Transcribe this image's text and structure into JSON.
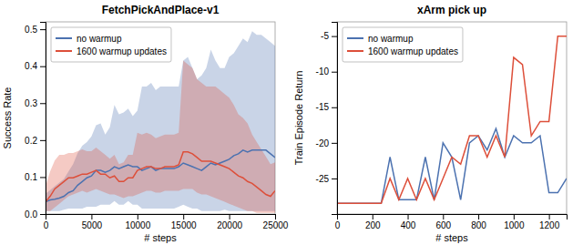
{
  "chart_data": [
    {
      "type": "line",
      "title": "FetchPickAndPlace-v1",
      "xlabel": "# steps",
      "ylabel": "Success Rate",
      "xlim": [
        0,
        25000
      ],
      "ylim": [
        0.0,
        0.52
      ],
      "xticks": [
        0,
        5000,
        10000,
        15000,
        20000,
        25000
      ],
      "yticks": [
        {
          "value": 0.0,
          "label": "0.0"
        },
        0.1,
        0.2,
        0.3,
        0.4,
        0.5
      ],
      "legend": "upper left",
      "x": [
        0,
        500,
        1000,
        1500,
        2000,
        2500,
        3000,
        3500,
        4000,
        4500,
        5000,
        5500,
        6000,
        6500,
        7000,
        7500,
        8000,
        8500,
        9000,
        9500,
        10000,
        10500,
        11000,
        11500,
        12000,
        12500,
        13000,
        13500,
        14000,
        14500,
        15000,
        15500,
        16000,
        16500,
        17000,
        17500,
        18000,
        18500,
        19000,
        19500,
        20000,
        20500,
        21000,
        21500,
        22000,
        22500,
        23000,
        23500,
        24000,
        24500,
        25000
      ],
      "series": [
        {
          "name": "no warmup",
          "color": "#4c72b0",
          "values": [
            0.033,
            0.038,
            0.04,
            0.043,
            0.048,
            0.058,
            0.063,
            0.078,
            0.088,
            0.098,
            0.103,
            0.118,
            0.118,
            0.113,
            0.118,
            0.128,
            0.123,
            0.128,
            0.133,
            0.128,
            0.128,
            0.118,
            0.123,
            0.128,
            0.118,
            0.123,
            0.123,
            0.123,
            0.123,
            0.128,
            0.138,
            0.133,
            0.128,
            0.123,
            0.118,
            0.128,
            0.138,
            0.133,
            0.138,
            0.143,
            0.148,
            0.158,
            0.163,
            0.173,
            0.168,
            0.173,
            0.173,
            0.173,
            0.173,
            0.163,
            0.153
          ],
          "upper": [
            0.055,
            0.065,
            0.075,
            0.085,
            0.095,
            0.115,
            0.135,
            0.165,
            0.185,
            0.195,
            0.21,
            0.24,
            0.245,
            0.215,
            0.235,
            0.295,
            0.27,
            0.275,
            0.285,
            0.265,
            0.28,
            0.345,
            0.345,
            0.355,
            0.335,
            0.345,
            0.345,
            0.345,
            0.345,
            0.345,
            0.415,
            0.425,
            0.395,
            0.365,
            0.375,
            0.395,
            0.445,
            0.415,
            0.395,
            0.395,
            0.425,
            0.435,
            0.455,
            0.475,
            0.465,
            0.495,
            0.485,
            0.485,
            0.475,
            0.465,
            0.455
          ],
          "lower": [
            0.008,
            0.008,
            0.008,
            0.008,
            0.012,
            0.015,
            0.015,
            0.015,
            0.015,
            0.02,
            0.02,
            0.02,
            0.025,
            0.025,
            0.025,
            0.035,
            0.025,
            0.025,
            0.035,
            0.025,
            0.025,
            0.015,
            0.015,
            0.015,
            0.015,
            0.015,
            0.015,
            0.015,
            0.015,
            0.02,
            0.025,
            0.02,
            0.015,
            0.015,
            0.008,
            0.008,
            0.008,
            0.008,
            0.008,
            0.012,
            0.008,
            0.008,
            0.008,
            0.008,
            0.008,
            0.008,
            0.008,
            0.008,
            0.008,
            0.008,
            0.008
          ]
        },
        {
          "name": "1600 warmup updates",
          "color": "#dd4f3a",
          "values": [
            0.033,
            0.048,
            0.068,
            0.078,
            0.088,
            0.098,
            0.098,
            0.103,
            0.108,
            0.108,
            0.113,
            0.118,
            0.108,
            0.108,
            0.098,
            0.103,
            0.088,
            0.088,
            0.098,
            0.098,
            0.118,
            0.123,
            0.128,
            0.128,
            0.123,
            0.123,
            0.128,
            0.128,
            0.128,
            0.133,
            0.168,
            0.168,
            0.163,
            0.153,
            0.143,
            0.143,
            0.143,
            0.138,
            0.133,
            0.128,
            0.123,
            0.113,
            0.103,
            0.098,
            0.088,
            0.083,
            0.073,
            0.063,
            0.053,
            0.048,
            0.063
          ],
          "upper": [
            0.075,
            0.115,
            0.145,
            0.16,
            0.16,
            0.165,
            0.165,
            0.17,
            0.175,
            0.17,
            0.17,
            0.18,
            0.17,
            0.16,
            0.15,
            0.16,
            0.135,
            0.14,
            0.16,
            0.16,
            0.22,
            0.215,
            0.22,
            0.215,
            0.205,
            0.21,
            0.215,
            0.215,
            0.215,
            0.22,
            0.415,
            0.405,
            0.395,
            0.365,
            0.355,
            0.345,
            0.345,
            0.345,
            0.335,
            0.325,
            0.315,
            0.295,
            0.27,
            0.26,
            0.245,
            0.215,
            0.195,
            0.175,
            0.155,
            0.135,
            0.14
          ],
          "lower": [
            0.008,
            0.008,
            0.018,
            0.028,
            0.038,
            0.048,
            0.053,
            0.058,
            0.063,
            0.058,
            0.063,
            0.068,
            0.063,
            0.058,
            0.053,
            0.053,
            0.048,
            0.043,
            0.048,
            0.048,
            0.053,
            0.058,
            0.063,
            0.063,
            0.058,
            0.058,
            0.063,
            0.063,
            0.063,
            0.063,
            0.068,
            0.068,
            0.068,
            0.058,
            0.053,
            0.053,
            0.048,
            0.043,
            0.038,
            0.033,
            0.028,
            0.023,
            0.018,
            0.013,
            0.008,
            0.008,
            0.003,
            0.003,
            0.003,
            0.003,
            0.003
          ]
        }
      ]
    },
    {
      "type": "line",
      "title": "xArm pick up",
      "xlabel": "# steps",
      "ylabel": "Train Episode Return",
      "xlim": [
        0,
        1300
      ],
      "ylim": [
        -30,
        -3
      ],
      "xticks": [
        0,
        200,
        400,
        600,
        800,
        1000,
        1200
      ],
      "yticks": [
        -25,
        -20,
        -15,
        -10,
        -5
      ],
      "legend": "upper left",
      "x": [
        0,
        50,
        100,
        150,
        200,
        250,
        300,
        350,
        400,
        450,
        500,
        550,
        600,
        650,
        700,
        750,
        800,
        850,
        900,
        950,
        1000,
        1050,
        1100,
        1150,
        1200,
        1250,
        1300
      ],
      "series": [
        {
          "name": "no warmup",
          "color": "#4c72b0",
          "values": [
            -28.5,
            -28.5,
            -28.5,
            -28.5,
            -28.5,
            -28.5,
            -22,
            -28,
            -28,
            -28,
            -22,
            -28,
            -20,
            -22,
            -28,
            -20,
            -19,
            -21,
            -18,
            -22,
            -19,
            -20,
            -20,
            -19,
            -27,
            -27,
            -25
          ]
        },
        {
          "name": "1600 warmup updates",
          "color": "#dd4f3a",
          "values": [
            -28.5,
            -28.5,
            -28.5,
            -28.5,
            -28.5,
            -28.5,
            -25,
            -28,
            -25,
            -28,
            -25,
            -28,
            -25,
            -22,
            -23,
            -19,
            -19,
            -22,
            -19,
            -22,
            -8,
            -9,
            -19,
            -17,
            -17,
            -5,
            -5
          ]
        }
      ]
    }
  ]
}
